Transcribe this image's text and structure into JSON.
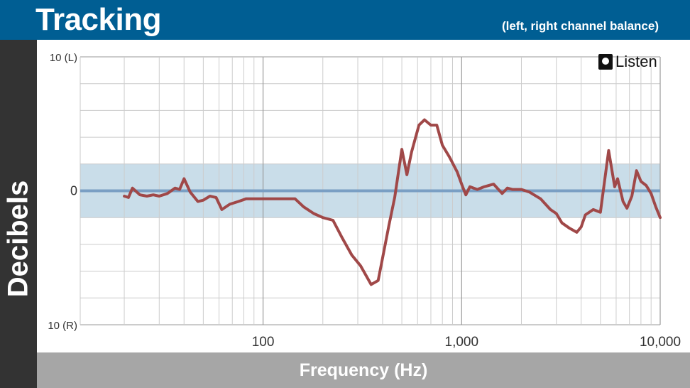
{
  "header": {
    "title": "Tracking",
    "subtitle": "(left, right channel balance)"
  },
  "brand": {
    "logo_text": "Listen"
  },
  "colors": {
    "header_bg": "#005e93",
    "band_fill": "#c9dde9",
    "zero_line": "#7a9fc4",
    "series_line": "#a04848",
    "grid": "#cccccc"
  },
  "chart_data": {
    "type": "line",
    "title": "Tracking",
    "subtitle": "(left, right channel balance)",
    "xlabel": "Frequency (Hz)",
    "ylabel": "Decibels",
    "x_scale": "log",
    "xlim": [
      12,
      10000
    ],
    "ylim": [
      -10,
      10
    ],
    "x_ticks": [
      {
        "value": 100,
        "label": "100"
      },
      {
        "value": 1000,
        "label": "1,000"
      },
      {
        "value": 10000,
        "label": "10,000"
      }
    ],
    "y_ticks": [
      {
        "value": 10,
        "label": "10 (L)"
      },
      {
        "value": 0,
        "label": "0"
      },
      {
        "value": -10,
        "label": "10 (R)"
      }
    ],
    "tolerance_band": [
      -2,
      2
    ],
    "grid": true,
    "series": [
      {
        "x": [
          20,
          21,
          22,
          24,
          26,
          28,
          30,
          33,
          36,
          38,
          40,
          43,
          47,
          50,
          54,
          58,
          62,
          68,
          75,
          82,
          90,
          100,
          110,
          120,
          130,
          145,
          160,
          180,
          200,
          225,
          250,
          280,
          310,
          350,
          380,
          400,
          430,
          460,
          500,
          530,
          560,
          610,
          650,
          700,
          750,
          800,
          870,
          950,
          1000,
          1050,
          1100,
          1200,
          1300,
          1450,
          1600,
          1700,
          1800,
          2000,
          2200,
          2500,
          2800,
          3000,
          3200,
          3500,
          3800,
          4000,
          4200,
          4600,
          5000,
          5500,
          5900,
          6100,
          6500,
          6800,
          7200,
          7600,
          8000,
          8500,
          9000,
          9500,
          10000
        ],
        "y": [
          -0.4,
          -0.5,
          0.2,
          -0.3,
          -0.4,
          -0.3,
          -0.4,
          -0.2,
          0.2,
          0.1,
          0.9,
          -0.1,
          -0.8,
          -0.7,
          -0.4,
          -0.5,
          -1.4,
          -1.0,
          -0.8,
          -0.6,
          -0.6,
          -0.6,
          -0.6,
          -0.6,
          -0.6,
          -0.6,
          -1.2,
          -1.7,
          -2.0,
          -2.2,
          -3.5,
          -4.8,
          -5.6,
          -7.0,
          -6.7,
          -5.0,
          -2.6,
          -0.5,
          3.1,
          1.2,
          2.9,
          4.9,
          5.3,
          4.9,
          4.9,
          3.4,
          2.5,
          1.4,
          0.5,
          -0.3,
          0.3,
          0.1,
          0.3,
          0.5,
          -0.2,
          0.2,
          0.1,
          0.1,
          -0.1,
          -0.6,
          -1.4,
          -1.7,
          -2.4,
          -2.8,
          -3.1,
          -2.7,
          -1.8,
          -1.4,
          -1.6,
          3.0,
          0.3,
          0.9,
          -0.8,
          -1.3,
          -0.4,
          1.5,
          0.7,
          0.4,
          -0.2,
          -1.2,
          -2.0
        ]
      }
    ]
  }
}
